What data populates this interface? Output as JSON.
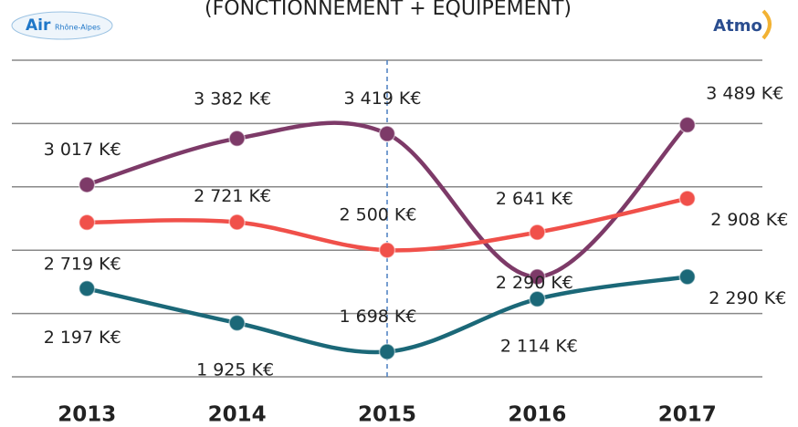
{
  "logos": {
    "left": "Air",
    "left_sub": "Rhône-Alpes",
    "right": "Atmo"
  },
  "chart_data": {
    "type": "line",
    "title": "(FONCTIONNEMENT + ÉQUIPEMENT)",
    "categories": [
      "2013",
      "2014",
      "2015",
      "2016",
      "2017"
    ],
    "series": [
      {
        "color": "#7d3a68",
        "values": [
          3017,
          3382,
          3419,
          2290,
          3489
        ],
        "value_labels": [
          "3 017 K€",
          "3 382 K€",
          "3 419 K€",
          "2 290 K€",
          "3 489 K€"
        ]
      },
      {
        "color": "#f0504a",
        "values": [
          2719,
          2721,
          2500,
          2641,
          2908
        ],
        "value_labels": [
          "2 719 K€",
          "2 721 K€",
          "2 500 K€",
          "2 641 K€",
          "2 908 K€"
        ]
      },
      {
        "color": "#1b6878",
        "values": [
          2197,
          1925,
          1698,
          2114,
          2290
        ],
        "value_labels": [
          "2 197 K€",
          "1 925 K€",
          "1 698 K€",
          "2 114 K€",
          "2 290 K€"
        ]
      }
    ],
    "ylim": [
      1500,
      4000
    ],
    "yticks": [
      1500,
      2000,
      2500,
      3000,
      3500,
      4000
    ],
    "grid": true
  }
}
